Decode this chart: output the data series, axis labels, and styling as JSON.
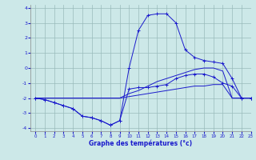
{
  "xlabel": "Graphe des températures (°c)",
  "xlim": [
    -0.5,
    23
  ],
  "ylim": [
    -4.2,
    4.2
  ],
  "xticks": [
    0,
    1,
    2,
    3,
    4,
    5,
    6,
    7,
    8,
    9,
    10,
    11,
    12,
    13,
    14,
    15,
    16,
    17,
    18,
    19,
    20,
    21,
    22,
    23
  ],
  "yticks": [
    -4,
    -3,
    -2,
    -1,
    0,
    1,
    2,
    3,
    4
  ],
  "bg_color": "#cce8e8",
  "line_color": "#1a1acc",
  "grid_color": "#99bbbb",
  "series": [
    {
      "x": [
        0,
        1,
        2,
        3,
        4,
        5,
        6,
        7,
        8,
        9,
        10,
        11,
        12,
        13,
        14,
        15,
        16,
        17,
        18,
        19,
        20,
        21,
        22,
        23
      ],
      "y": [
        -2.0,
        -2.0,
        -2.0,
        -2.0,
        -2.0,
        -2.0,
        -2.0,
        -2.0,
        -2.0,
        -2.0,
        -1.9,
        -1.8,
        -1.7,
        -1.6,
        -1.5,
        -1.4,
        -1.3,
        -1.2,
        -1.2,
        -1.1,
        -1.1,
        -2.0,
        -2.0,
        -2.0
      ],
      "marker": false
    },
    {
      "x": [
        0,
        1,
        2,
        3,
        4,
        5,
        6,
        7,
        8,
        9,
        10,
        11,
        12,
        13,
        14,
        15,
        16,
        17,
        18,
        19,
        20,
        21,
        22,
        23
      ],
      "y": [
        -2.0,
        -2.0,
        -2.0,
        -2.0,
        -2.0,
        -2.0,
        -2.0,
        -2.0,
        -2.0,
        -2.0,
        -1.7,
        -1.5,
        -1.2,
        -0.9,
        -0.7,
        -0.5,
        -0.3,
        -0.1,
        0.0,
        0.0,
        -0.2,
        -2.0,
        -2.0,
        -2.0
      ],
      "marker": false
    },
    {
      "x": [
        0,
        1,
        2,
        3,
        4,
        5,
        6,
        7,
        8,
        9,
        10,
        11,
        12,
        13,
        14,
        15,
        16,
        17,
        18,
        19,
        20,
        21,
        22,
        23
      ],
      "y": [
        -2.0,
        -2.1,
        -2.3,
        -2.5,
        -2.7,
        -3.2,
        -3.3,
        -3.5,
        -3.8,
        -3.5,
        -1.4,
        -1.3,
        -1.3,
        -1.2,
        -1.1,
        -0.7,
        -0.5,
        -0.4,
        -0.4,
        -0.6,
        -1.0,
        -1.2,
        -2.0,
        -2.0
      ],
      "marker": true
    },
    {
      "x": [
        0,
        1,
        2,
        3,
        4,
        5,
        6,
        7,
        8,
        9,
        10,
        11,
        12,
        13,
        14,
        15,
        16,
        17,
        18,
        19,
        20,
        21,
        22,
        23
      ],
      "y": [
        -2.0,
        -2.1,
        -2.3,
        -2.5,
        -2.7,
        -3.2,
        -3.3,
        -3.5,
        -3.8,
        -3.5,
        0.0,
        2.5,
        3.5,
        3.6,
        3.6,
        3.0,
        1.2,
        0.7,
        0.5,
        0.4,
        0.3,
        -0.7,
        -2.0,
        -2.0
      ],
      "marker": true
    }
  ]
}
